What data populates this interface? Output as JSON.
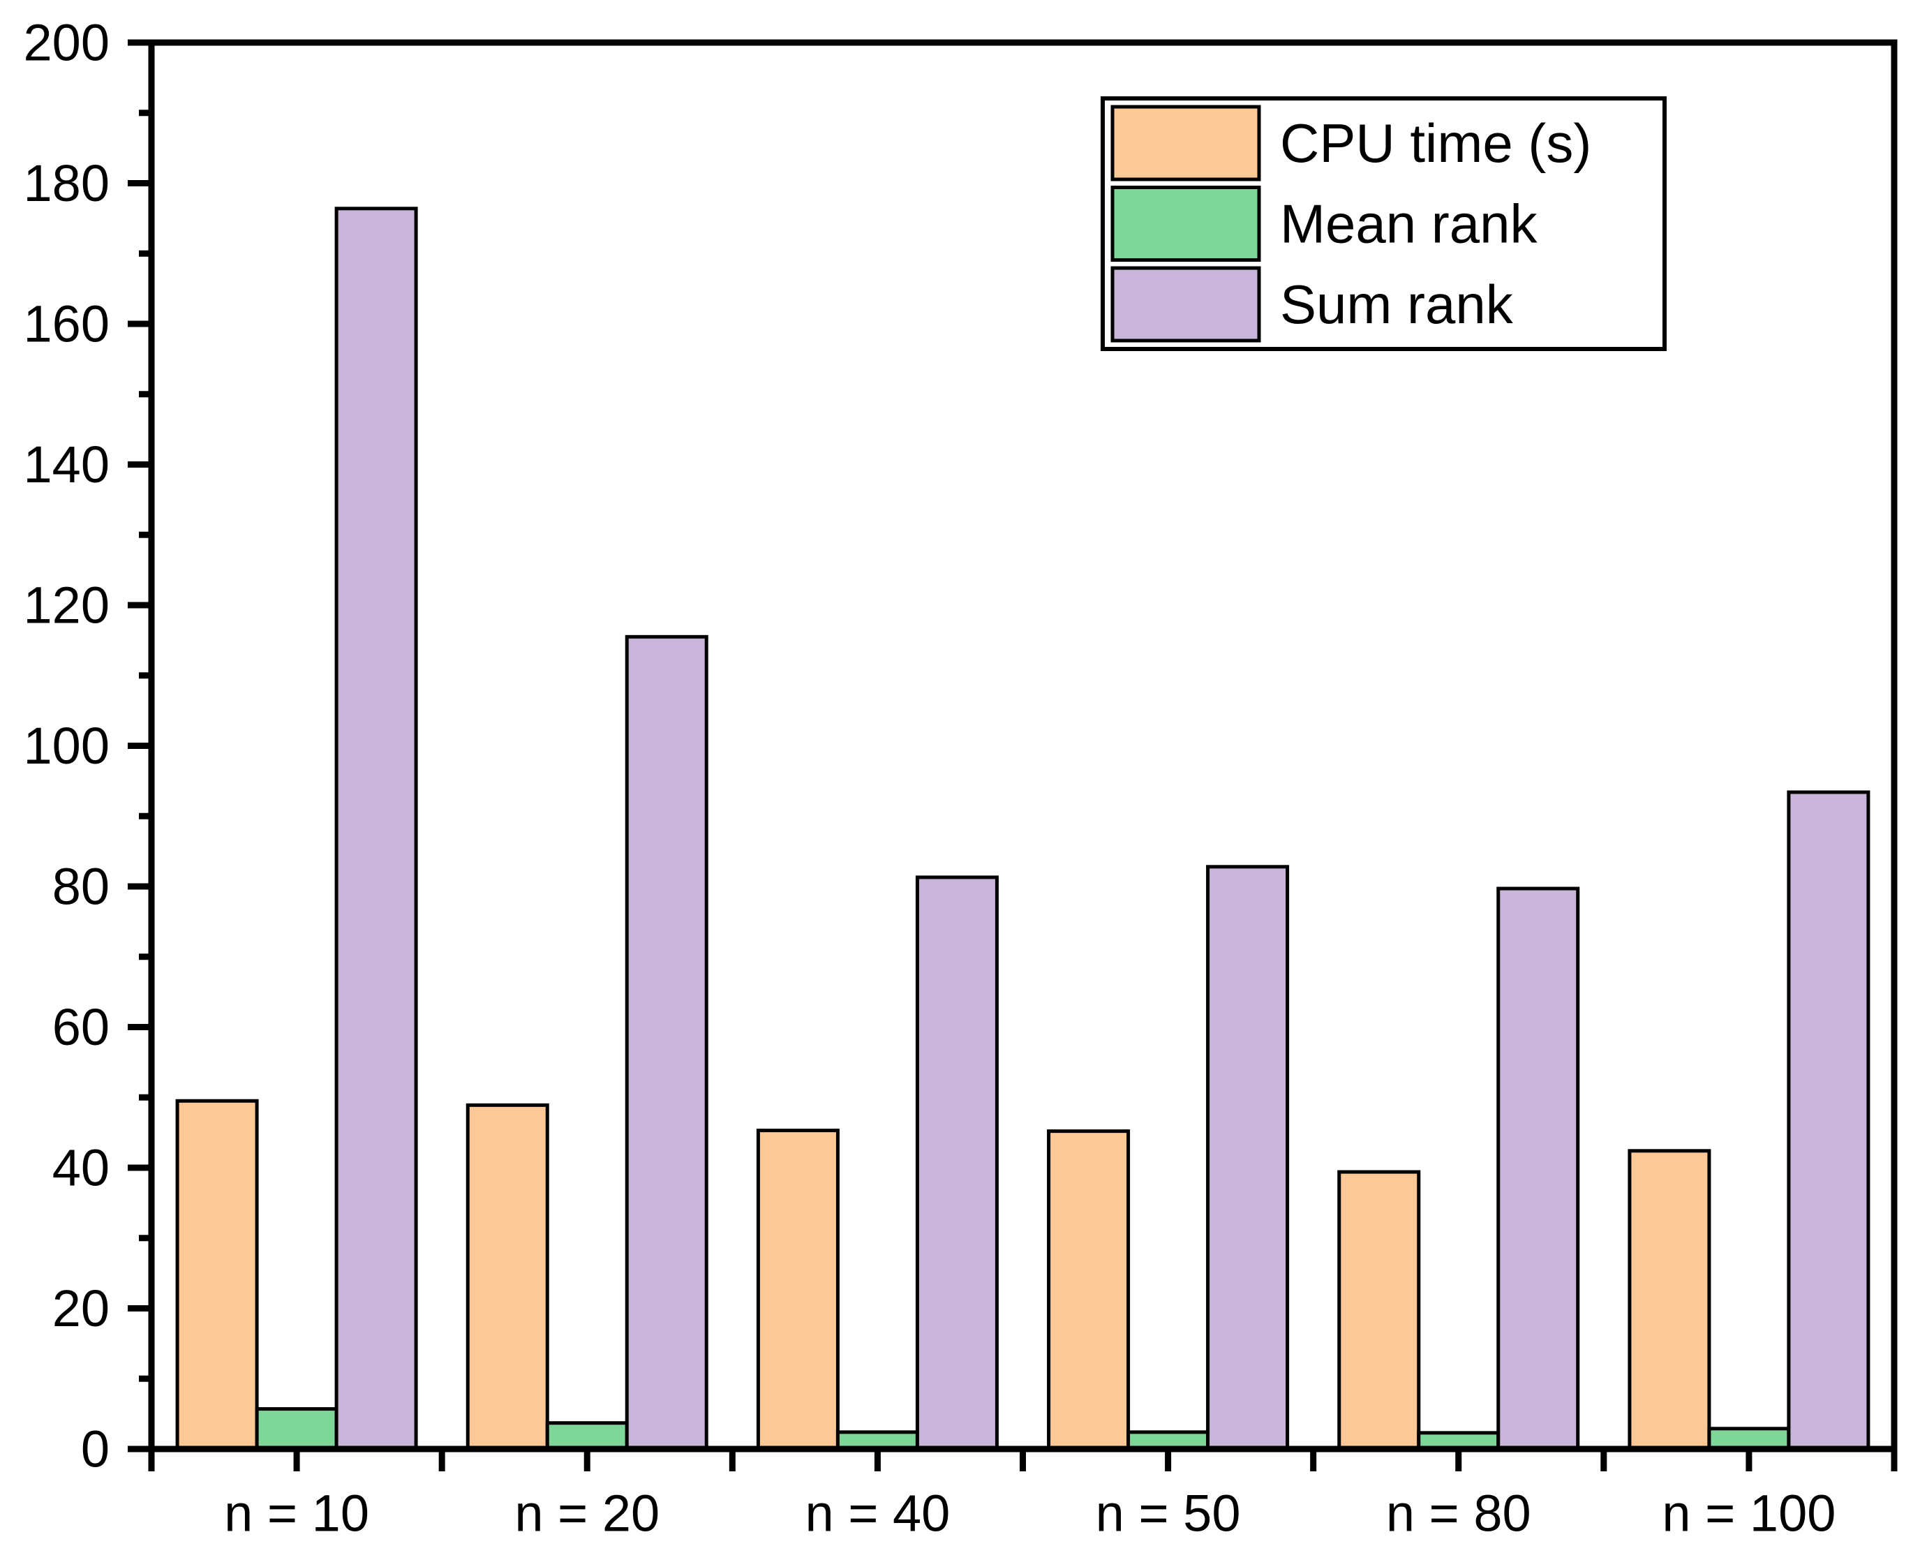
{
  "chart_data": {
    "type": "bar",
    "title": "",
    "xlabel": "",
    "ylabel": "",
    "categories": [
      "n = 10",
      "n = 20",
      "n = 40",
      "n = 50",
      "n = 80",
      "n = 100"
    ],
    "series": [
      {
        "name": "CPU time (s)",
        "color": "#FCC996",
        "values": [
          49.5,
          48.9,
          45.3,
          45.2,
          39.4,
          42.4
        ]
      },
      {
        "name": "Mean rank",
        "color": "#7ED699",
        "values": [
          5.7,
          3.7,
          2.4,
          2.4,
          2.3,
          2.9
        ]
      },
      {
        "name": "Sum rank",
        "color": "#C8B5D9",
        "values": [
          176.4,
          115.5,
          81.3,
          82.8,
          79.7,
          93.4
        ]
      }
    ],
    "ylim": [
      0,
      200
    ],
    "y_major_step": 20,
    "y_minor_step": 10,
    "y_tick_labels": [
      "0",
      "20",
      "40",
      "60",
      "80",
      "100",
      "120",
      "140",
      "160",
      "180",
      "200"
    ],
    "grid": false,
    "legend_position": "top-right",
    "bar_edge_color": "#000000",
    "axis_color": "#000000",
    "text_color": "#000000",
    "background": "#FFFFFF"
  }
}
